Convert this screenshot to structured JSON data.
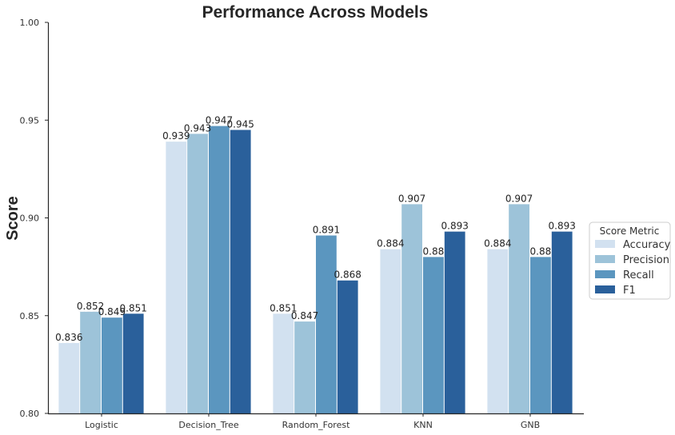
{
  "chart_data": {
    "type": "bar",
    "title": "Performance Across Models",
    "xlabel": "",
    "ylabel": "Score",
    "ylim": [
      0.8,
      1.0
    ],
    "yticks": [
      "0.80",
      "0.85",
      "0.90",
      "0.95",
      "1.00"
    ],
    "categories": [
      "Logistic",
      "Decision_Tree",
      "Random_Forest",
      "KNN",
      "GNB"
    ],
    "series": [
      {
        "name": "Accuracy",
        "color": "#d2e1f0",
        "values": [
          0.836,
          0.939,
          0.851,
          0.884,
          0.884
        ],
        "labels": [
          "0.836",
          "0.939",
          "0.851",
          "0.884",
          "0.884"
        ]
      },
      {
        "name": "Precision",
        "color": "#9dc3d9",
        "values": [
          0.852,
          0.943,
          0.847,
          0.907,
          0.907
        ],
        "labels": [
          "0.852",
          "0.943",
          "0.847",
          "0.907",
          "0.907"
        ]
      },
      {
        "name": "Recall",
        "color": "#5b96bf",
        "values": [
          0.849,
          0.947,
          0.891,
          0.88,
          0.88
        ],
        "labels": [
          "0.849",
          "0.947",
          "0.891",
          "0.88",
          "0.88"
        ]
      },
      {
        "name": "F1",
        "color": "#2a609b",
        "values": [
          0.851,
          0.945,
          0.868,
          0.893,
          0.893
        ],
        "labels": [
          "0.851",
          "0.945",
          "0.868",
          "0.893",
          "0.893"
        ]
      }
    ],
    "legend": {
      "title": "Score Metric",
      "placement": "center-right"
    },
    "grid": false
  }
}
